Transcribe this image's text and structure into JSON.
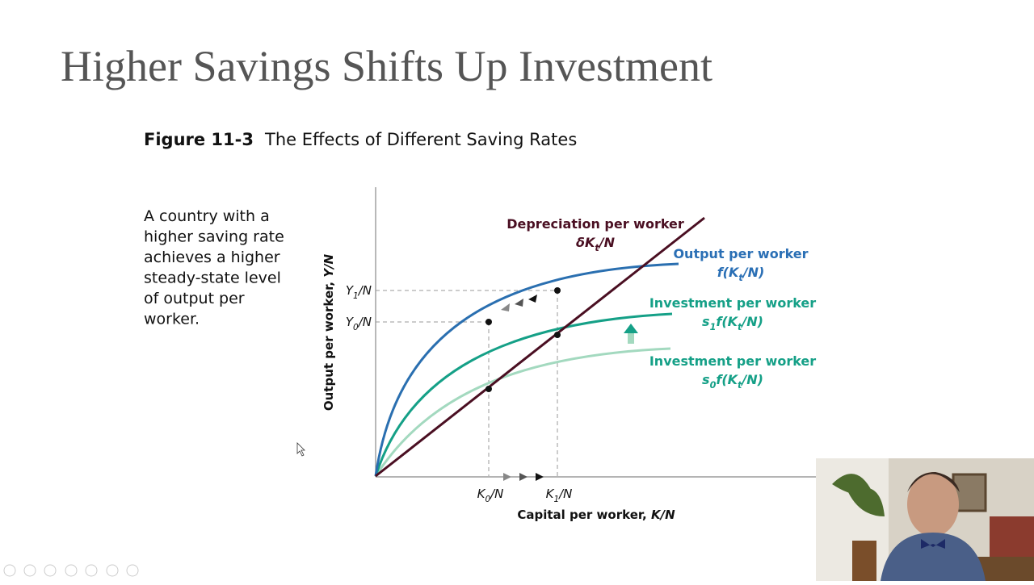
{
  "slide": {
    "title": "Higher Savings Shifts Up Investment"
  },
  "figure": {
    "number": "Figure 11-3",
    "caption": "The Effects of Different Saving Rates"
  },
  "description": [
    "A country with a",
    "higher saving rate",
    "achieves a higher",
    "steady-state level",
    "of output per",
    "worker."
  ],
  "diagram": {
    "y_axis_label": {
      "text": "Output per worker, ",
      "var": "Y/N"
    },
    "x_axis_label": {
      "text": "Capital per worker, ",
      "var": "K/N"
    },
    "y_ticks": [
      [
        "Y",
        "1",
        "/N"
      ],
      [
        "Y",
        "0",
        "/N"
      ]
    ],
    "x_ticks": [
      [
        "K",
        "0",
        "/N"
      ],
      [
        "K",
        "1",
        "/N"
      ]
    ],
    "curves": [
      {
        "name": "Depreciation per worker",
        "formula": [
          "δK",
          "t",
          "/N"
        ]
      },
      {
        "name": "Output per worker",
        "formula": [
          "f(K",
          "t",
          "/N)"
        ]
      },
      {
        "name": "Investment per worker",
        "formula": [
          "s",
          "1",
          "f(K",
          "t",
          "/N)"
        ]
      },
      {
        "name": "Investment per worker",
        "formula": [
          "s",
          "0",
          "f(K",
          "t",
          "/N)"
        ]
      }
    ]
  }
}
